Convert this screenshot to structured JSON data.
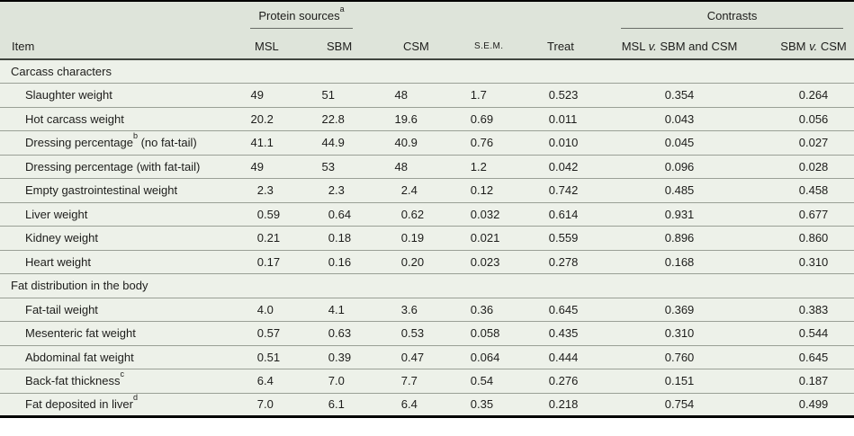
{
  "colors": {
    "header_bg": "#dee4da",
    "body_bg": "#edf1e9",
    "frame_border": "#000000",
    "header_rule": "#3f443e",
    "row_rule": "#9aa096",
    "text": "#1d1d1b"
  },
  "table": {
    "item_header": "Item",
    "protein_group": {
      "label": "Protein sources",
      "sup": "a"
    },
    "contrasts_group": {
      "label": "Contrasts"
    },
    "protein_columns": [
      "MSL",
      "SBM",
      "CSM"
    ],
    "sem_header": "S.E.M.",
    "treat_header": "Treat",
    "contrast_columns": [
      {
        "pre": "MSL",
        "vs": "v.",
        "post": "SBM and CSM"
      },
      {
        "pre": "SBM",
        "vs": "v.",
        "post": "CSM"
      }
    ],
    "sections": [
      {
        "title": "Carcass characters",
        "rows": [
          {
            "item": "Slaughter weight",
            "sup": "",
            "rest": "",
            "values": [
              "49",
              "51",
              "48",
              "1.7",
              "0.523",
              "0.354",
              "0.264"
            ]
          },
          {
            "item": "Hot carcass weight",
            "sup": "",
            "rest": "",
            "values": [
              "20.2",
              "22.8",
              "19.6",
              "0.69",
              "0.011",
              "0.043",
              "0.056"
            ]
          },
          {
            "item": "Dressing percentage",
            "sup": "b",
            "rest": " (no fat-tail)",
            "values": [
              "41.1",
              "44.9",
              "40.9",
              "0.76",
              "0.010",
              "0.045",
              "0.027"
            ]
          },
          {
            "item": "Dressing percentage (with fat-tail)",
            "sup": "",
            "rest": "",
            "values": [
              "49",
              "53",
              "48",
              "1.2",
              "0.042",
              "0.096",
              "0.028"
            ]
          },
          {
            "item": "Empty gastrointestinal weight",
            "sup": "",
            "rest": "",
            "values": [
              "2.3",
              "2.3",
              "2.4",
              "0.12",
              "0.742",
              "0.485",
              "0.458"
            ]
          },
          {
            "item": "Liver weight",
            "sup": "",
            "rest": "",
            "values": [
              "0.59",
              "0.64",
              "0.62",
              "0.032",
              "0.614",
              "0.931",
              "0.677"
            ]
          },
          {
            "item": "Kidney weight",
            "sup": "",
            "rest": "",
            "values": [
              "0.21",
              "0.18",
              "0.19",
              "0.021",
              "0.559",
              "0.896",
              "0.860"
            ]
          },
          {
            "item": "Heart weight",
            "sup": "",
            "rest": "",
            "values": [
              "0.17",
              "0.16",
              "0.20",
              "0.023",
              "0.278",
              "0.168",
              "0.310"
            ]
          }
        ]
      },
      {
        "title": "Fat distribution in the body",
        "rows": [
          {
            "item": "Fat-tail weight",
            "sup": "",
            "rest": "",
            "values": [
              "4.0",
              "4.1",
              "3.6",
              "0.36",
              "0.645",
              "0.369",
              "0.383"
            ]
          },
          {
            "item": "Mesenteric fat weight",
            "sup": "",
            "rest": "",
            "values": [
              "0.57",
              "0.63",
              "0.53",
              "0.058",
              "0.435",
              "0.310",
              "0.544"
            ]
          },
          {
            "item": "Abdominal fat weight",
            "sup": "",
            "rest": "",
            "values": [
              "0.51",
              "0.39",
              "0.47",
              "0.064",
              "0.444",
              "0.760",
              "0.645"
            ]
          },
          {
            "item": "Back-fat thickness",
            "sup": "c",
            "rest": "",
            "values": [
              "6.4",
              "7.0",
              "7.7",
              "0.54",
              "0.276",
              "0.151",
              "0.187"
            ]
          },
          {
            "item": "Fat deposited in liver",
            "sup": "d",
            "rest": "",
            "values": [
              "7.0",
              "6.1",
              "6.4",
              "0.35",
              "0.218",
              "0.754",
              "0.499"
            ]
          }
        ]
      }
    ]
  }
}
